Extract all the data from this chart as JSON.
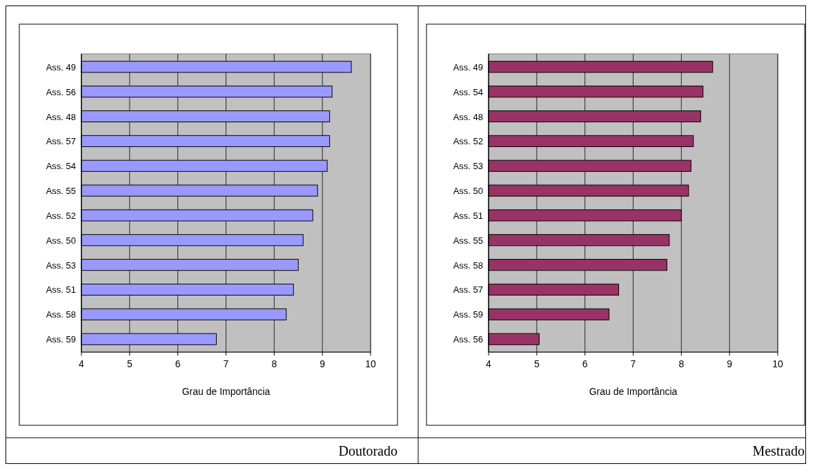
{
  "chart_data": [
    {
      "type": "bar",
      "orientation": "horizontal",
      "categories": [
        "Ass. 49",
        "Ass. 56",
        "Ass. 48",
        "Ass. 57",
        "Ass. 54",
        "Ass. 55",
        "Ass. 52",
        "Ass. 50",
        "Ass. 53",
        "Ass. 51",
        "Ass. 58",
        "Ass. 59"
      ],
      "values": [
        9.6,
        9.2,
        9.15,
        9.15,
        9.1,
        8.9,
        8.8,
        8.6,
        8.5,
        8.4,
        8.25,
        6.8
      ],
      "color": "#9999ff",
      "xlim": [
        4,
        10
      ],
      "xticks": [
        4,
        5,
        6,
        7,
        8,
        9,
        10
      ],
      "grid": "x",
      "xlabel": "Grau de Importância",
      "annotations": [
        "Doutorado"
      ]
    },
    {
      "type": "bar",
      "orientation": "horizontal",
      "categories": [
        "Ass. 49",
        "Ass. 54",
        "Ass. 48",
        "Ass. 52",
        "Ass. 53",
        "Ass. 50",
        "Ass. 51",
        "Ass. 55",
        "Ass. 58",
        "Ass. 57",
        "Ass. 59",
        "Ass. 56"
      ],
      "values": [
        8.65,
        8.45,
        8.4,
        8.25,
        8.2,
        8.15,
        8.0,
        7.75,
        7.7,
        6.7,
        6.5,
        5.05
      ],
      "color": "#993366",
      "xlim": [
        4,
        10
      ],
      "xticks": [
        4,
        5,
        6,
        7,
        8,
        9,
        10
      ],
      "grid": "x",
      "xlabel": "Grau de Importância",
      "annotations": [
        "Mestrado"
      ]
    }
  ]
}
